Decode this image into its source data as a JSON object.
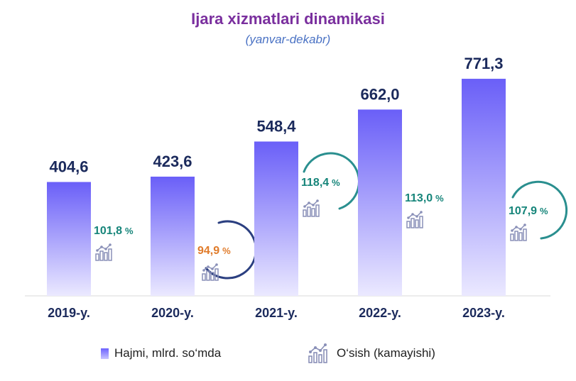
{
  "colors": {
    "title": "#7a2f9e",
    "subtitle": "#4a72c4",
    "value_label": "#1b2a5c",
    "category_label": "#1b2a5c",
    "bar_top": "#6a5ff8",
    "bar_bottom": "#ebe9ff",
    "growth_positive": "#16857a",
    "growth_negative": "#e07b2a",
    "ring_teal": "#2a8f8f",
    "ring_navy": "#2b3f80",
    "icon": "#8a90b8"
  },
  "legend": {
    "volume_label": "Hajmi, mlrd. so‘mda",
    "growth_label": "O‘sish (kamayishi)",
    "growth_icon": "growth-chart-icon",
    "placement": "bottom"
  },
  "chart_data": {
    "type": "bar",
    "title": "Ijara xizmatlari dinamikasi",
    "subtitle": "(yanvar-dekabr)",
    "categories": [
      "2019-y.",
      "2020-y.",
      "2021-y.",
      "2022-y.",
      "2023-y."
    ],
    "series": [
      {
        "name": "Hajmi, mlrd. so‘mda",
        "values": [
          404.6,
          423.6,
          548.4,
          662.0,
          771.3
        ]
      }
    ],
    "value_labels": [
      "404,6",
      "423,6",
      "548,4",
      "662,0",
      "771,3"
    ],
    "growth": [
      {
        "label": "101,8",
        "unit": "%",
        "value": 101.8,
        "ring": false
      },
      {
        "label": "94,9",
        "unit": "%",
        "value": 94.9,
        "ring": true
      },
      {
        "label": "118,4",
        "unit": "%",
        "value": 118.4,
        "ring": true
      },
      {
        "label": "113,0",
        "unit": "%",
        "value": 113.0,
        "ring": false
      },
      {
        "label": "107,9",
        "unit": "%",
        "value": 107.9,
        "ring": true
      }
    ],
    "grid": false,
    "ylim": [
      0,
      900
    ]
  }
}
